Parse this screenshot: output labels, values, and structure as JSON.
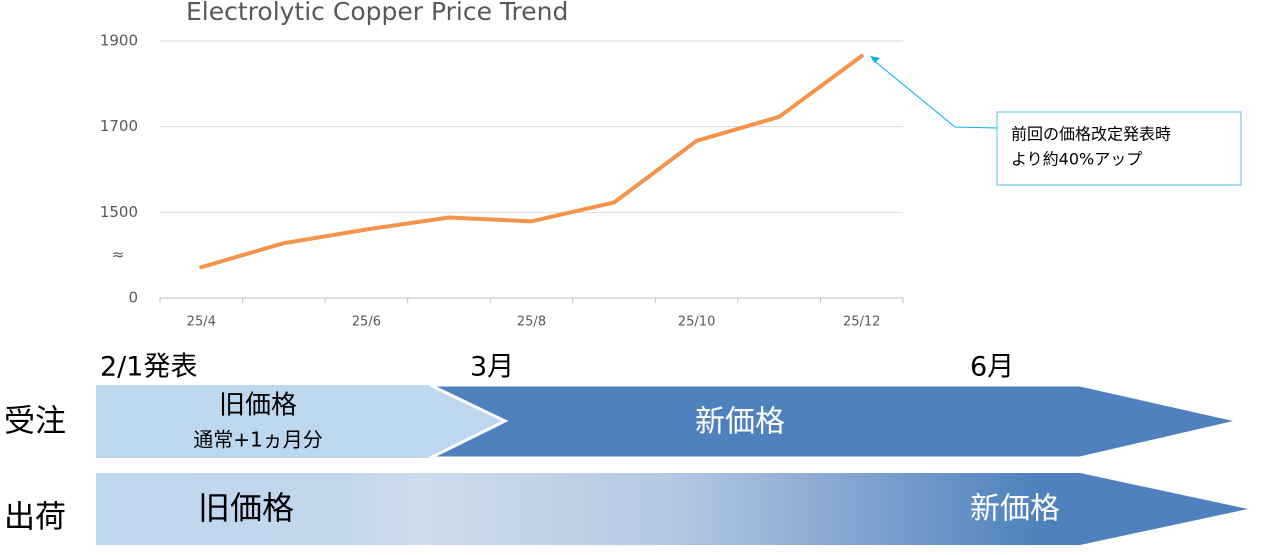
{
  "chart_data": {
    "type": "line",
    "title": "Electrolytic Copper Price Trend",
    "categories": [
      "25/4",
      null,
      "25/6",
      null,
      "25/8",
      null,
      "25/10",
      null,
      "25/12"
    ],
    "values": [
      1372,
      1428,
      1460,
      1488,
      1479,
      1523,
      1667,
      1723,
      1865
    ],
    "color": "#f4934a",
    "ylim": [
      1300,
      1900
    ],
    "yticks": [
      0,
      1500,
      1700,
      1900
    ],
    "axis_break": "≈",
    "grid": true,
    "annotation": [
      "前回の価格改定発表時",
      "より約40%アップ"
    ]
  },
  "timeline": {
    "milestones": [
      "2/1発表",
      "3月",
      "6月"
    ],
    "orders": {
      "label": "受注",
      "old": "旧価格",
      "old_note": "通常+1ヵ月分",
      "new": "新価格"
    },
    "shipments": {
      "label": "出荷",
      "old": "旧価格",
      "new": "新価格"
    }
  }
}
